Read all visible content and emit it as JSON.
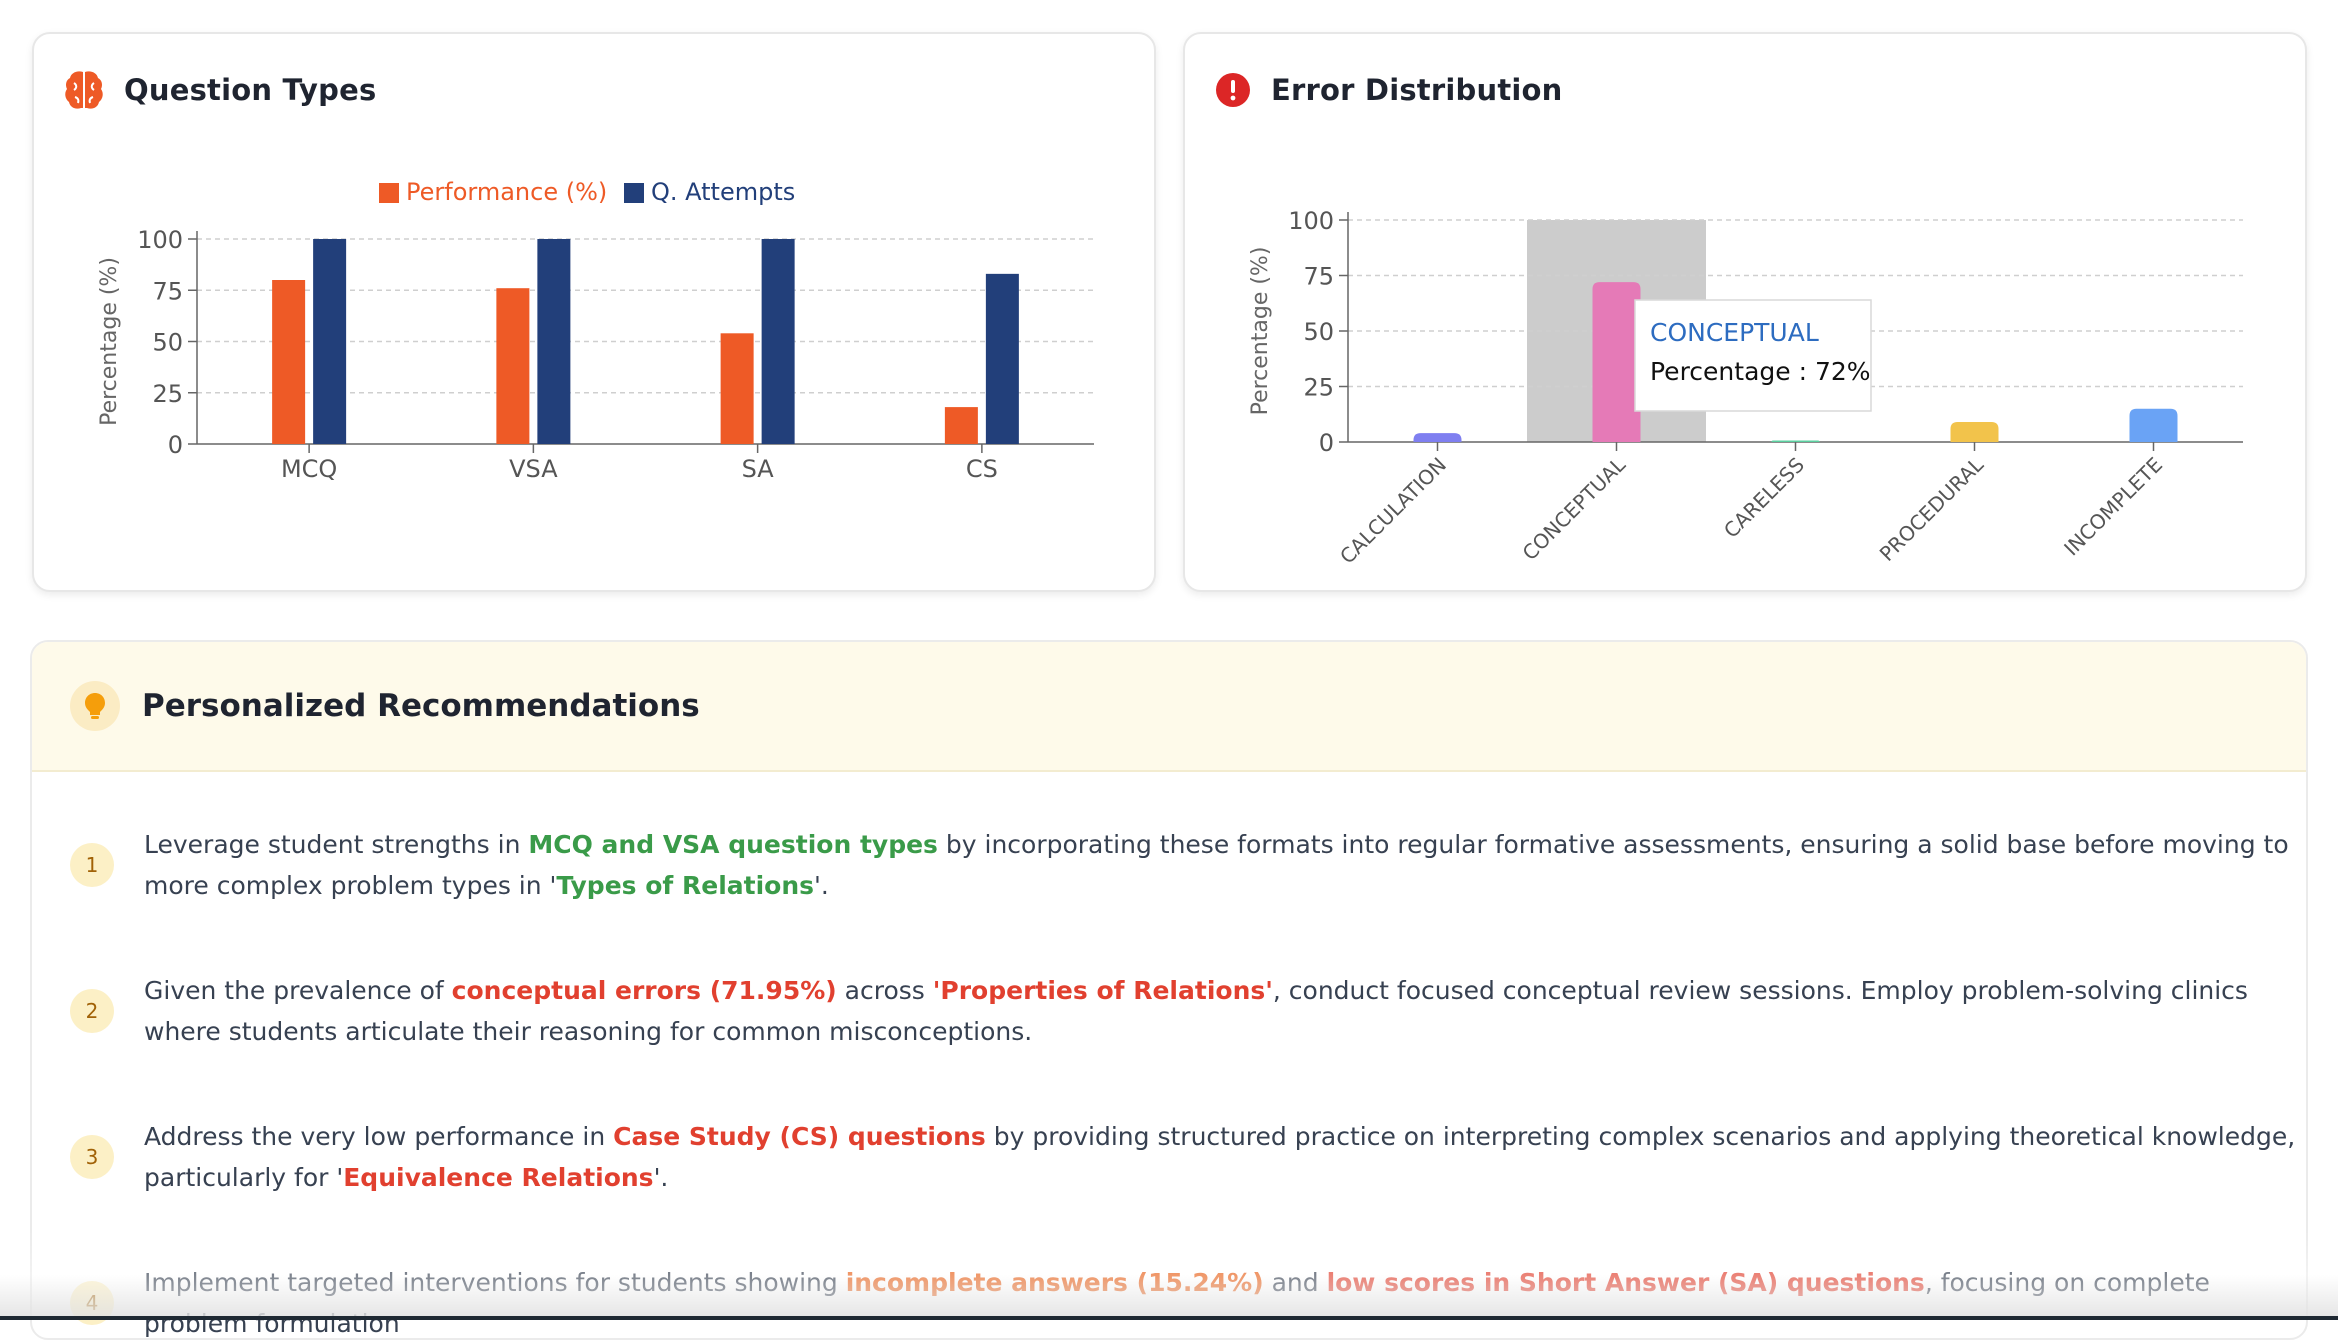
{
  "question_types": {
    "title": "Question Types",
    "icon": "brain-icon",
    "legend": {
      "performance": "Performance (%)",
      "attempts": "Q. Attempts"
    },
    "colors": {
      "performance": "#ee5a26",
      "attempts": "#223f7a"
    }
  },
  "error_distribution": {
    "title": "Error Distribution",
    "icon": "alert-circle-icon",
    "tooltip": {
      "title": "CONCEPTUAL",
      "line": "Percentage : 72%"
    }
  },
  "recommendations": {
    "title": "Personalized Recommendations",
    "icon": "lightbulb-icon",
    "items": [
      {
        "num": "1",
        "segments": [
          {
            "text": "Leverage student strengths in ",
            "style": "plain"
          },
          {
            "text": "MCQ and VSA question types",
            "style": "green"
          },
          {
            "text": " by incorporating these formats into regular formative assessments, ensuring a solid base before moving to more complex problem types in ",
            "style": "plain"
          },
          {
            "text": "'",
            "style": "plain"
          },
          {
            "text": "Types of Relations",
            "style": "green"
          },
          {
            "text": "'.",
            "style": "plain"
          }
        ]
      },
      {
        "num": "2",
        "segments": [
          {
            "text": "Given the prevalence of ",
            "style": "plain"
          },
          {
            "text": "conceptual errors (71.95%)",
            "style": "red"
          },
          {
            "text": " across ",
            "style": "plain"
          },
          {
            "text": "'Properties of Relations'",
            "style": "red"
          },
          {
            "text": ", conduct focused conceptual review sessions. Employ problem-solving clinics where students articulate their reasoning for common misconceptions.",
            "style": "plain"
          }
        ]
      },
      {
        "num": "3",
        "segments": [
          {
            "text": "Address the very low performance in ",
            "style": "plain"
          },
          {
            "text": "Case Study (CS) questions",
            "style": "red"
          },
          {
            "text": " by providing structured practice on interpreting complex scenarios and applying theoretical knowledge, particularly for ",
            "style": "plain"
          },
          {
            "text": "'",
            "style": "plain"
          },
          {
            "text": "Equivalence Relations",
            "style": "red"
          },
          {
            "text": "'.",
            "style": "plain"
          }
        ]
      },
      {
        "num": "4",
        "segments": [
          {
            "text": "Implement targeted interventions for students showing ",
            "style": "plain"
          },
          {
            "text": "incomplete answers (15.24%)",
            "style": "orange"
          },
          {
            "text": " and ",
            "style": "plain"
          },
          {
            "text": "low scores in Short Answer (SA) questions",
            "style": "red"
          },
          {
            "text": ", focusing on complete problem formulation",
            "style": "plain"
          }
        ]
      }
    ]
  },
  "chart_data": [
    {
      "type": "bar",
      "title": "Question Types",
      "categories": [
        "MCQ",
        "VSA",
        "SA",
        "CS"
      ],
      "series": [
        {
          "name": "Performance (%)",
          "values": [
            80,
            76,
            54,
            18
          ],
          "color": "#ee5a26"
        },
        {
          "name": "Q. Attempts",
          "values": [
            100,
            100,
            100,
            83
          ],
          "color": "#223f7a"
        }
      ],
      "xlabel": "",
      "ylabel": "Percentage (%)",
      "ylim": [
        0,
        100
      ],
      "yticks": [
        0,
        25,
        50,
        75,
        100
      ],
      "grid": true,
      "legend": "top-center"
    },
    {
      "type": "bar",
      "title": "Error Distribution",
      "categories": [
        "CALCULATION",
        "CONCEPTUAL",
        "CARELESS",
        "PROCEDURAL",
        "INCOMPLETE"
      ],
      "series": [
        {
          "values": [
            4,
            72,
            0.5,
            9,
            15
          ]
        }
      ],
      "colors": [
        "#7f7ff0",
        "#e57ab7",
        "#5bd0a0",
        "#f2c34b",
        "#6aa3f5"
      ],
      "xlabel": "",
      "ylabel": "Percentage (%)",
      "ylim": [
        0,
        100
      ],
      "yticks": [
        0,
        25,
        50,
        75,
        100
      ],
      "grid": true,
      "highlighted": "CONCEPTUAL"
    }
  ]
}
